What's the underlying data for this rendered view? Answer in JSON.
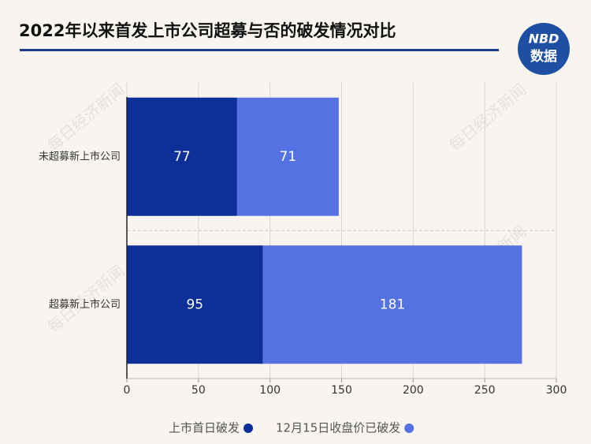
{
  "chart_data": {
    "type": "stacked-barh",
    "title": "2022年以来首发上市公司超募与否的破发情况对比",
    "categories": [
      "未超募新上市公司",
      "超募新上市公司"
    ],
    "series": [
      {
        "name": "上市首日破发",
        "color": "#0d2f99",
        "values": [
          77,
          95
        ]
      },
      {
        "name": "12月15日收盘价已破发",
        "color": "#5571e2",
        "values": [
          71,
          181
        ]
      }
    ],
    "xlim": [
      0,
      300
    ],
    "xticks": [
      0,
      50,
      100,
      150,
      200,
      250,
      300
    ],
    "grid": true,
    "legend": "bottom"
  },
  "logo": {
    "brand": "NBD",
    "label": "数据"
  },
  "watermark": "每日经济新闻"
}
